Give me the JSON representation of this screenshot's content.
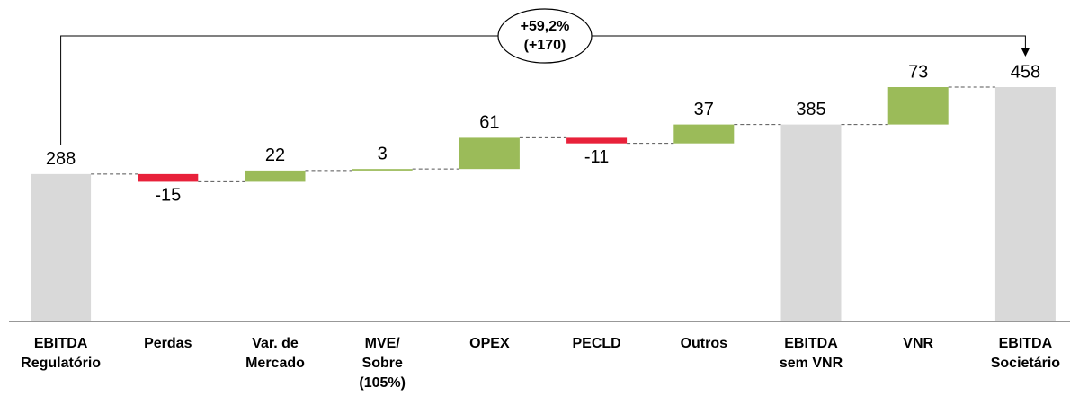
{
  "chart_data": {
    "type": "waterfall",
    "categories": [
      [
        "EBITDA",
        "Regulatório"
      ],
      [
        "Perdas"
      ],
      [
        "Var. de",
        "Mercado"
      ],
      [
        "MVE/",
        "Sobre",
        "(105%)"
      ],
      [
        "OPEX"
      ],
      [
        "PECLD"
      ],
      [
        "Outros"
      ],
      [
        "EBITDA",
        "sem VNR"
      ],
      [
        "VNR"
      ],
      [
        "EBITDA",
        "Societário"
      ]
    ],
    "values": [
      288,
      -15,
      22,
      3,
      61,
      -11,
      37,
      385,
      73,
      458
    ],
    "kinds": [
      "total",
      "delta",
      "delta",
      "delta",
      "delta",
      "delta",
      "delta",
      "total",
      "delta",
      "total"
    ],
    "colors": {
      "total": "#d9d9d9",
      "increase": "#9bbb59",
      "decrease": "#e8213a"
    },
    "annotation": [
      "+59,2%",
      "(+170)"
    ]
  }
}
